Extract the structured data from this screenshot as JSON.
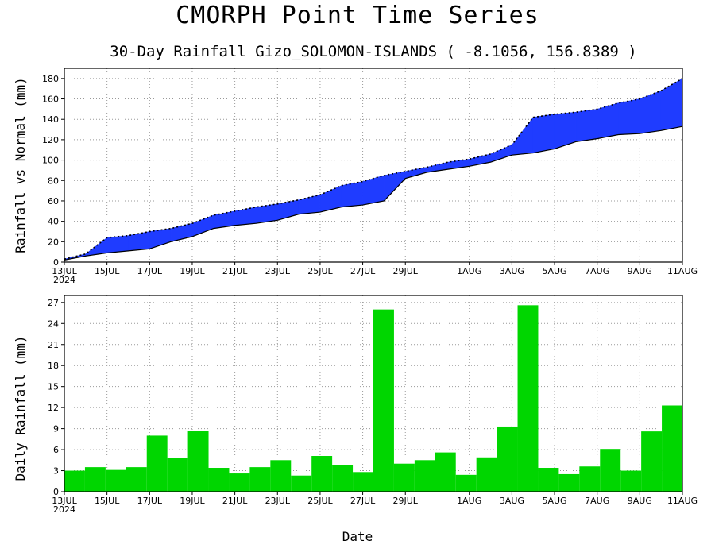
{
  "title": "CMORPH Point Time Series",
  "subtitle": "30-Day Rainfall  Gizo_SOLOMON-ISLANDS ( -8.1056, 156.8389 )",
  "xlabel": "Date",
  "colors": {
    "deficit": "#e6ac2a",
    "surplus": "#1f3cff",
    "daily": "#00d600"
  },
  "chart_data": [
    {
      "type": "area",
      "title": "",
      "ylabel": "Rainfall vs Normal (mm)",
      "ylim": [
        0,
        190
      ],
      "yticks": [
        0,
        20,
        40,
        60,
        80,
        100,
        120,
        140,
        160,
        180
      ],
      "x_tick_labels": [
        "13JUL",
        "15JUL",
        "17JUL",
        "19JUL",
        "21JUL",
        "23JUL",
        "25JUL",
        "27JUL",
        "29JUL",
        "1AUG",
        "3AUG",
        "5AUG",
        "7AUG",
        "9AUG",
        "11AUG"
      ],
      "x_tick_dates": [
        "2024-07-13",
        "2024-07-15",
        "2024-07-17",
        "2024-07-19",
        "2024-07-21",
        "2024-07-23",
        "2024-07-25",
        "2024-07-27",
        "2024-07-29",
        "2024-08-01",
        "2024-08-03",
        "2024-08-05",
        "2024-08-07",
        "2024-08-09",
        "2024-08-11"
      ],
      "x_year_label": "2024",
      "grid": true,
      "x": [
        "2024-07-13",
        "2024-07-14",
        "2024-07-15",
        "2024-07-16",
        "2024-07-17",
        "2024-07-18",
        "2024-07-19",
        "2024-07-20",
        "2024-07-21",
        "2024-07-22",
        "2024-07-23",
        "2024-07-24",
        "2024-07-25",
        "2024-07-26",
        "2024-07-27",
        "2024-07-28",
        "2024-07-29",
        "2024-07-30",
        "2024-07-31",
        "2024-08-01",
        "2024-08-02",
        "2024-08-03",
        "2024-08-04",
        "2024-08-05",
        "2024-08-06",
        "2024-08-07",
        "2024-08-08",
        "2024-08-09",
        "2024-08-10",
        "2024-08-11"
      ],
      "series": [
        {
          "values": [
            3,
            8,
            24,
            26,
            30,
            33,
            38,
            46,
            50,
            54,
            57,
            61,
            66,
            75,
            79,
            85,
            89,
            93,
            98,
            101,
            106,
            115,
            142,
            145,
            147,
            150,
            156,
            160,
            168,
            180
          ]
        },
        {
          "values": [
            2,
            6,
            9,
            11,
            13,
            20,
            25,
            33,
            36,
            38,
            41,
            47,
            49,
            54,
            56,
            60,
            82,
            88,
            91,
            94,
            98,
            105,
            107,
            111,
            118,
            121,
            125,
            126,
            129,
            133
          ]
        }
      ]
    },
    {
      "type": "bar",
      "title": "",
      "ylabel": "Daily Rainfall (mm)",
      "ylim": [
        0,
        28
      ],
      "yticks": [
        0,
        3,
        6,
        9,
        12,
        15,
        18,
        21,
        24,
        27
      ],
      "x_tick_labels": [
        "13JUL",
        "15JUL",
        "17JUL",
        "19JUL",
        "21JUL",
        "23JUL",
        "25JUL",
        "27JUL",
        "29JUL",
        "1AUG",
        "3AUG",
        "5AUG",
        "7AUG",
        "9AUG",
        "11AUG"
      ],
      "x_year_label": "2024",
      "grid": true,
      "categories": [
        "2024-07-13",
        "2024-07-14",
        "2024-07-15",
        "2024-07-16",
        "2024-07-17",
        "2024-07-18",
        "2024-07-19",
        "2024-07-20",
        "2024-07-21",
        "2024-07-22",
        "2024-07-23",
        "2024-07-24",
        "2024-07-25",
        "2024-07-26",
        "2024-07-27",
        "2024-07-28",
        "2024-07-29",
        "2024-07-30",
        "2024-07-31",
        "2024-08-01",
        "2024-08-02",
        "2024-08-03",
        "2024-08-04",
        "2024-08-05",
        "2024-08-06",
        "2024-08-07",
        "2024-08-08",
        "2024-08-09",
        "2024-08-10",
        "2024-08-11"
      ],
      "values": [
        3.0,
        3.5,
        3.1,
        3.5,
        8.0,
        4.8,
        8.7,
        3.4,
        2.6,
        3.5,
        4.5,
        2.3,
        5.1,
        3.8,
        2.8,
        26.0,
        4.0,
        4.5,
        5.6,
        2.4,
        4.9,
        9.3,
        26.6,
        3.4,
        2.5,
        3.6,
        6.1,
        3.0,
        8.6,
        12.3
      ]
    }
  ]
}
